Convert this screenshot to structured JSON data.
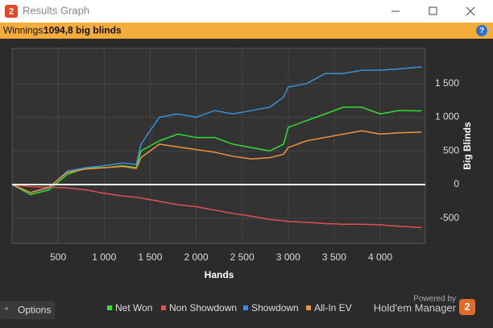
{
  "window": {
    "title": "Results Graph",
    "app_icon": "2"
  },
  "banner": {
    "label": "Winnings:",
    "value": "1094,8 big blinds"
  },
  "footer": {
    "options": "Options",
    "powered_by": "Powered by",
    "brand": "Hold'em Manager",
    "brand_icon": "2"
  },
  "chart_data": {
    "type": "line",
    "x_label": "Hands",
    "y_label": "Big Blinds",
    "x": [
      0,
      200,
      400,
      600,
      800,
      1000,
      1200,
      1350,
      1400,
      1600,
      1800,
      2000,
      2200,
      2400,
      2600,
      2800,
      2950,
      3000,
      3200,
      3400,
      3600,
      3800,
      4000,
      4200,
      4450
    ],
    "series": [
      {
        "name": "Net Won",
        "color": "#33dd33",
        "values": [
          0,
          -150,
          -80,
          150,
          250,
          250,
          280,
          250,
          500,
          650,
          750,
          700,
          700,
          600,
          550,
          500,
          600,
          850,
          950,
          1050,
          1150,
          1150,
          1050,
          1100,
          1095
        ]
      },
      {
        "name": "Non Showdown",
        "color": "#e05050",
        "values": [
          0,
          -30,
          -40,
          -50,
          -80,
          -130,
          -170,
          -190,
          -200,
          -250,
          -300,
          -330,
          -380,
          -430,
          -470,
          -520,
          -540,
          -550,
          -560,
          -580,
          -590,
          -590,
          -600,
          -620,
          -640
        ]
      },
      {
        "name": "Showdown",
        "color": "#3a8fd8",
        "values": [
          0,
          -120,
          -50,
          200,
          250,
          280,
          320,
          300,
          600,
          1000,
          1050,
          1000,
          1100,
          1050,
          1100,
          1150,
          1300,
          1450,
          1500,
          1650,
          1650,
          1700,
          1700,
          1720,
          1750
        ]
      },
      {
        "name": "All-In EV",
        "color": "#f0923a",
        "values": [
          0,
          -120,
          -40,
          180,
          230,
          250,
          270,
          240,
          400,
          600,
          560,
          520,
          480,
          420,
          380,
          400,
          450,
          550,
          650,
          700,
          750,
          800,
          750,
          770,
          780
        ]
      }
    ],
    "xlim": [
      0,
      4490
    ],
    "ylim": [
      -875,
      2025
    ],
    "xticks": [
      500,
      {
        "value": 1000,
        "label": "1 000"
      },
      {
        "value": 1500,
        "label": "1 500"
      },
      {
        "value": 2000,
        "label": "2 000"
      },
      {
        "value": 2500,
        "label": "2 500"
      },
      {
        "value": 3000,
        "label": "3 000"
      },
      {
        "value": 3500,
        "label": "3 500"
      },
      {
        "value": 4000,
        "label": "4 000"
      }
    ],
    "yticks": [
      -500,
      0,
      500,
      {
        "value": 1000,
        "label": "1 000"
      },
      {
        "value": 1500,
        "label": "1 500"
      }
    ],
    "grid": true
  }
}
